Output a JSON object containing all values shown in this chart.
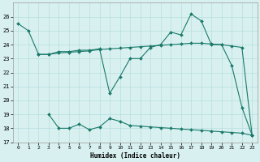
{
  "line1_x": [
    0,
    1,
    2,
    3,
    4,
    5,
    6,
    7,
    8,
    9,
    10,
    11,
    12,
    13,
    14,
    15,
    16,
    17,
    18,
    19,
    20,
    21,
    22,
    23
  ],
  "line1_y": [
    25.5,
    25.0,
    23.3,
    23.3,
    23.5,
    23.5,
    23.6,
    23.6,
    23.7,
    20.5,
    21.7,
    23.0,
    23.0,
    23.8,
    24.0,
    24.9,
    24.7,
    26.2,
    25.7,
    24.0,
    24.0,
    22.5,
    19.5,
    17.5
  ],
  "line2_x": [
    2,
    3,
    4,
    5,
    6,
    7,
    8,
    9,
    10,
    11,
    12,
    13,
    14,
    15,
    16,
    17,
    18,
    19,
    20,
    21,
    22,
    23
  ],
  "line2_y": [
    23.3,
    23.3,
    23.4,
    23.45,
    23.5,
    23.55,
    23.65,
    23.7,
    23.75,
    23.8,
    23.85,
    23.9,
    23.95,
    24.0,
    24.05,
    24.1,
    24.1,
    24.05,
    24.0,
    23.9,
    23.8,
    17.5
  ],
  "line3_x": [
    3,
    4,
    5,
    6,
    7,
    8,
    9,
    10,
    11,
    12,
    13,
    14,
    15,
    16,
    17,
    18,
    19,
    20,
    21,
    22,
    23
  ],
  "line3_y": [
    19.0,
    18.0,
    18.0,
    18.3,
    17.9,
    18.1,
    18.7,
    18.5,
    18.2,
    18.15,
    18.1,
    18.05,
    18.0,
    17.95,
    17.9,
    17.85,
    17.8,
    17.75,
    17.7,
    17.65,
    17.5
  ],
  "line_color": "#1a7a6a",
  "bg_color": "#d8f0f0",
  "grid_color": "#b8dede",
  "xlabel": "Humidex (Indice chaleur)",
  "ylim": [
    17,
    27
  ],
  "xlim": [
    -0.5,
    23.5
  ],
  "yticks": [
    17,
    18,
    19,
    20,
    21,
    22,
    23,
    24,
    25,
    26
  ],
  "xticks": [
    0,
    1,
    2,
    3,
    4,
    5,
    6,
    7,
    8,
    9,
    10,
    11,
    12,
    13,
    14,
    15,
    16,
    17,
    18,
    19,
    20,
    21,
    22,
    23
  ]
}
